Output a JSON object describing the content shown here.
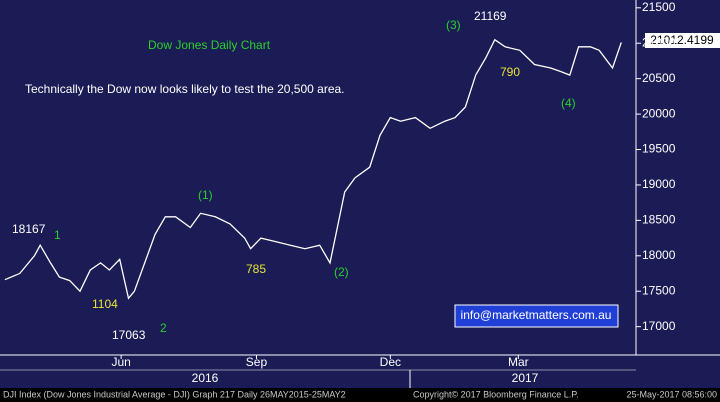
{
  "chart_data": {
    "type": "line",
    "x": [
      2,
      12,
      22,
      26,
      33,
      39,
      46,
      53,
      60,
      67,
      73,
      80,
      86,
      90,
      97,
      104,
      111,
      118,
      128,
      135,
      145,
      155,
      165,
      169,
      176,
      186,
      196,
      206,
      216,
      223,
      227,
      233,
      240,
      250,
      257,
      264,
      271,
      281,
      291,
      301,
      308,
      315,
      322,
      329,
      335,
      342,
      352,
      362,
      373,
      380,
      386,
      392,
      400,
      406,
      415,
      421
    ],
    "values": [
      17663,
      17750,
      18000,
      18150,
      17900,
      17700,
      17650,
      17500,
      17800,
      17900,
      17800,
      17950,
      17400,
      17500,
      17900,
      18300,
      18550,
      18550,
      18400,
      18600,
      18550,
      18450,
      18250,
      18100,
      18250,
      18200,
      18150,
      18100,
      18150,
      17900,
      18300,
      18900,
      19100,
      19250,
      19700,
      19950,
      19900,
      19950,
      19800,
      19900,
      19950,
      20100,
      20550,
      20800,
      21050,
      20950,
      20900,
      20700,
      20650,
      20600,
      20550,
      20950,
      20950,
      20900,
      20650,
      21012
    ],
    "color": "#ffffff",
    "xlim": [
      0,
      431
    ],
    "xticks": [
      {
        "value": 81,
        "label": "Jun"
      },
      {
        "value": 173,
        "label": "Sep"
      },
      {
        "value": 264,
        "label": "Dec"
      },
      {
        "value": 351,
        "label": "Mar"
      }
    ],
    "years": [
      "2016",
      "2017"
    ],
    "ylim": [
      16600,
      21610
    ],
    "yticks": [
      17000,
      17500,
      18000,
      18500,
      19000,
      19500,
      20000,
      20500,
      21000,
      21500
    ],
    "title": "Dow Jones Daily Chart",
    "subtitle": "Technically the Dow now looks likely to test the 20,500 area.",
    "annotations": [
      "(3)",
      "21169",
      "790",
      "(4)",
      "(1)",
      "18167",
      "1",
      "1104",
      "785",
      "(2)",
      "17063",
      "2"
    ],
    "last_price": "21012.4199",
    "contact": "info@marketmatters.com.au",
    "footer": [
      "DJI Index (Dow Jones Industrial Average - DJI) Graph 217  Daily 26MAY2015-25MAY2",
      "Copyright© 2017 Bloomberg Finance L.P.",
      "25-May-2017 08:56:00"
    ]
  }
}
